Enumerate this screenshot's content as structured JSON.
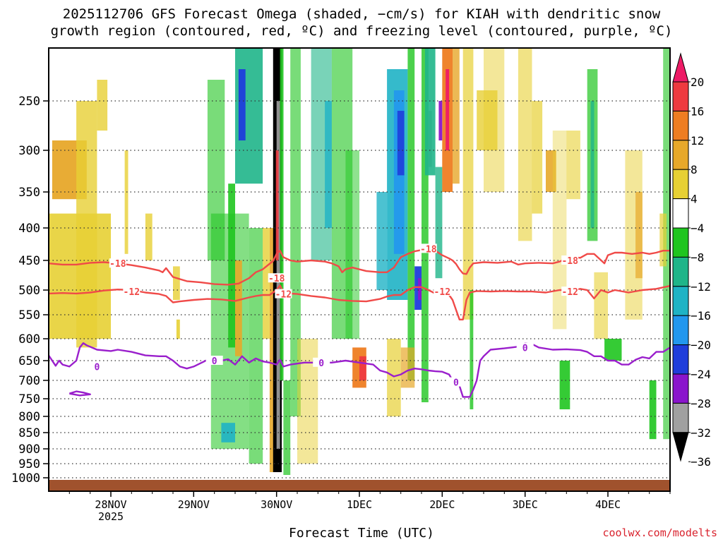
{
  "chart_data": {
    "type": "heatmap",
    "title": "2025112706 GFS Forecast Omega (shaded, −cm/s) for KIAH with dendritic snow",
    "subtitle": "growth region (contoured, red, ºC) and freezing level (contoured, purple, ºC)",
    "xlabel": "Forecast Time (UTC)",
    "ylabel": "",
    "credit": "coolwx.com/modelts",
    "x_ticks": [
      {
        "label": "28NOV",
        "sublabel": "2025",
        "t": 12
      },
      {
        "label": "29NOV",
        "sublabel": "",
        "t": 36
      },
      {
        "label": "30NOV",
        "sublabel": "",
        "t": 60
      },
      {
        "label": "1DEC",
        "sublabel": "",
        "t": 84
      },
      {
        "label": "2DEC",
        "sublabel": "",
        "t": 108
      },
      {
        "label": "3DEC",
        "sublabel": "",
        "t": 132
      },
      {
        "label": "4DEC",
        "sublabel": "",
        "t": 156
      }
    ],
    "x_range_hours": [
      -6,
      174
    ],
    "y_ticks": [
      250,
      300,
      350,
      400,
      450,
      500,
      550,
      600,
      650,
      700,
      750,
      800,
      850,
      900,
      950,
      1000
    ],
    "y_range_hpa": [
      200,
      1020
    ],
    "colorbar": {
      "labels": [
        "20",
        "16",
        "12",
        "8",
        "4",
        "−4",
        "−8",
        "−12",
        "−16",
        "−20",
        "−24",
        "−28",
        "−32",
        "−36"
      ],
      "colors": [
        "#ee1b66",
        "#ee3a40",
        "#ee7d22",
        "#e7a82a",
        "#e7d034",
        "#ffffff",
        "#1fc51f",
        "#1fb589",
        "#1fb3c5",
        "#2297ee",
        "#1f3ddb",
        "#8a15cc",
        "#a0a0a0",
        "#000000"
      ]
    },
    "series": [
      {
        "name": "-18",
        "color": "#f04a48",
        "points": [
          [
            -6,
            455
          ],
          [
            -2,
            457
          ],
          [
            2,
            457
          ],
          [
            6,
            454
          ],
          [
            10,
            453
          ],
          [
            14,
            455
          ],
          [
            18,
            458
          ],
          [
            22,
            462
          ],
          [
            26,
            467
          ],
          [
            27,
            470
          ],
          [
            28,
            463
          ],
          [
            30,
            478
          ],
          [
            34,
            485
          ],
          [
            38,
            487
          ],
          [
            42,
            490
          ],
          [
            46,
            491
          ],
          [
            49,
            489
          ],
          [
            52,
            480
          ],
          [
            54,
            470
          ],
          [
            56,
            465
          ],
          [
            59,
            451
          ],
          [
            60,
            440
          ],
          [
            61,
            435
          ],
          [
            62,
            445
          ],
          [
            64,
            450
          ],
          [
            66,
            452
          ],
          [
            70,
            450
          ],
          [
            74,
            452
          ],
          [
            76,
            455
          ],
          [
            78,
            460
          ],
          [
            79,
            470
          ],
          [
            80,
            465
          ],
          [
            82,
            462
          ],
          [
            86,
            468
          ],
          [
            90,
            470
          ],
          [
            92,
            470
          ],
          [
            94,
            462
          ],
          [
            96,
            445
          ],
          [
            98,
            440
          ],
          [
            100,
            436
          ],
          [
            104,
            432
          ],
          [
            106,
            435
          ],
          [
            108,
            442
          ],
          [
            110,
            447
          ],
          [
            111,
            450
          ],
          [
            112,
            456
          ],
          [
            113,
            465
          ],
          [
            114,
            472
          ],
          [
            115,
            473
          ],
          [
            116,
            462
          ],
          [
            117,
            455
          ],
          [
            120,
            453
          ],
          [
            124,
            454
          ],
          [
            128,
            452
          ],
          [
            130,
            457
          ],
          [
            132,
            455
          ],
          [
            136,
            454
          ],
          [
            140,
            455
          ],
          [
            142,
            452
          ],
          [
            144,
            447
          ],
          [
            146,
            445
          ],
          [
            148,
            446
          ],
          [
            150,
            440
          ],
          [
            152,
            440
          ],
          [
            155,
            455
          ],
          [
            156,
            442
          ],
          [
            158,
            438
          ],
          [
            160,
            438
          ],
          [
            163,
            440
          ],
          [
            166,
            438
          ],
          [
            168,
            440
          ],
          [
            170,
            438
          ],
          [
            172,
            435
          ],
          [
            174,
            435
          ]
        ],
        "labels": [
          [
            14,
            455
          ],
          [
            60,
            480
          ],
          [
            104,
            432
          ],
          [
            145,
            450
          ]
        ]
      },
      {
        "name": "-12",
        "color": "#f04a48",
        "points": [
          [
            -6,
            507
          ],
          [
            -2,
            506
          ],
          [
            2,
            507
          ],
          [
            6,
            505
          ],
          [
            10,
            501
          ],
          [
            14,
            499
          ],
          [
            18,
            500
          ],
          [
            22,
            505
          ],
          [
            26,
            508
          ],
          [
            28,
            512
          ],
          [
            30,
            525
          ],
          [
            32,
            523
          ],
          [
            36,
            520
          ],
          [
            40,
            518
          ],
          [
            44,
            519
          ],
          [
            48,
            522
          ],
          [
            52,
            515
          ],
          [
            54,
            512
          ],
          [
            56,
            510
          ],
          [
            58,
            510
          ],
          [
            60,
            500
          ],
          [
            61,
            492
          ],
          [
            62,
            505
          ],
          [
            64,
            507
          ],
          [
            66,
            508
          ],
          [
            70,
            512
          ],
          [
            74,
            515
          ],
          [
            78,
            520
          ],
          [
            82,
            522
          ],
          [
            86,
            523
          ],
          [
            90,
            518
          ],
          [
            92,
            513
          ],
          [
            94,
            510
          ],
          [
            96,
            510
          ],
          [
            98,
            500
          ],
          [
            100,
            495
          ],
          [
            102,
            495
          ],
          [
            104,
            500
          ],
          [
            106,
            507
          ],
          [
            108,
            505
          ],
          [
            110,
            510
          ],
          [
            111,
            520
          ],
          [
            112,
            540
          ],
          [
            113,
            560
          ],
          [
            114,
            560
          ],
          [
            115,
            520
          ],
          [
            116,
            505
          ],
          [
            118,
            502
          ],
          [
            122,
            503
          ],
          [
            126,
            502
          ],
          [
            130,
            503
          ],
          [
            134,
            503
          ],
          [
            138,
            505
          ],
          [
            142,
            500
          ],
          [
            146,
            500
          ],
          [
            148,
            498
          ],
          [
            150,
            500
          ],
          [
            152,
            517
          ],
          [
            154,
            500
          ],
          [
            156,
            505
          ],
          [
            158,
            500
          ],
          [
            162,
            505
          ],
          [
            166,
            500
          ],
          [
            170,
            498
          ],
          [
            174,
            493
          ]
        ],
        "labels": [
          [
            18,
            503
          ],
          [
            62,
            508
          ],
          [
            108,
            503
          ],
          [
            145,
            503
          ]
        ]
      },
      {
        "name": "0",
        "color": "#9a1fcc",
        "points": [
          [
            -6,
            638
          ],
          [
            -5,
            650
          ],
          [
            -4,
            663
          ],
          [
            -3,
            650
          ],
          [
            -2,
            660
          ],
          [
            0,
            665
          ],
          [
            2,
            650
          ],
          [
            3,
            620
          ],
          [
            4,
            610
          ],
          [
            5,
            615
          ],
          [
            8,
            625
          ],
          [
            12,
            628
          ],
          [
            14,
            625
          ],
          [
            18,
            630
          ],
          [
            22,
            638
          ],
          [
            26,
            640
          ],
          [
            28,
            640
          ],
          [
            30,
            650
          ],
          [
            32,
            665
          ],
          [
            34,
            670
          ],
          [
            36,
            665
          ],
          [
            40,
            648
          ],
          [
            44,
            650
          ],
          [
            46,
            647
          ],
          [
            48,
            660
          ],
          [
            50,
            640
          ],
          [
            52,
            655
          ],
          [
            54,
            645
          ],
          [
            56,
            652
          ],
          [
            58,
            655
          ],
          [
            60,
            660
          ],
          [
            61,
            648
          ],
          [
            62,
            665
          ],
          [
            64,
            660
          ],
          [
            68,
            655
          ],
          [
            72,
            655
          ],
          [
            76,
            655
          ],
          [
            80,
            650
          ],
          [
            84,
            655
          ],
          [
            88,
            660
          ],
          [
            90,
            675
          ],
          [
            92,
            680
          ],
          [
            94,
            690
          ],
          [
            96,
            685
          ],
          [
            98,
            675
          ],
          [
            100,
            670
          ],
          [
            102,
            672
          ],
          [
            104,
            675
          ],
          [
            106,
            677
          ],
          [
            108,
            678
          ],
          [
            110,
            685
          ],
          [
            111,
            700
          ],
          [
            112,
            710
          ],
          [
            113,
            715
          ],
          [
            114,
            745
          ],
          [
            116,
            745
          ],
          [
            117,
            725
          ],
          [
            118,
            700
          ],
          [
            119,
            650
          ],
          [
            120,
            640
          ],
          [
            122,
            625
          ],
          [
            126,
            622
          ],
          [
            128,
            620
          ],
          [
            130,
            618
          ],
          [
            132,
            610
          ],
          [
            134,
            612
          ],
          [
            136,
            620
          ],
          [
            140,
            625
          ],
          [
            144,
            624
          ],
          [
            148,
            626
          ],
          [
            150,
            630
          ],
          [
            152,
            640
          ],
          [
            154,
            640
          ],
          [
            156,
            650
          ],
          [
            158,
            650
          ],
          [
            160,
            660
          ],
          [
            162,
            660
          ],
          [
            164,
            648
          ],
          [
            166,
            642
          ],
          [
            168,
            645
          ],
          [
            170,
            630
          ],
          [
            172,
            630
          ],
          [
            174,
            620
          ]
        ],
        "labels": [
          [
            8,
            665
          ],
          [
            42,
            650
          ],
          [
            73,
            655
          ],
          [
            112,
            705
          ],
          [
            132,
            620
          ]
        ]
      },
      {
        "name": "0 (isolated)",
        "color": "#9a1fcc",
        "points": [
          [
            0,
            736
          ],
          [
            2,
            730
          ],
          [
            4,
            733
          ],
          [
            6,
            738
          ],
          [
            3,
            741
          ],
          [
            0,
            736
          ]
        ],
        "labels": []
      }
    ],
    "shading_summary": "Mostly near-zero omega (white) with scattered yellow/orange rising-motion streaks, broad green/cyan/blue sinking-motion columns around 29NOV-2DEC, a dark black/red/pink vertical column near 30NOV 06Z, and red/magenta rising motion near 2DEC 12Z at upper levels; brown terrain band below 1000 hPa."
  }
}
